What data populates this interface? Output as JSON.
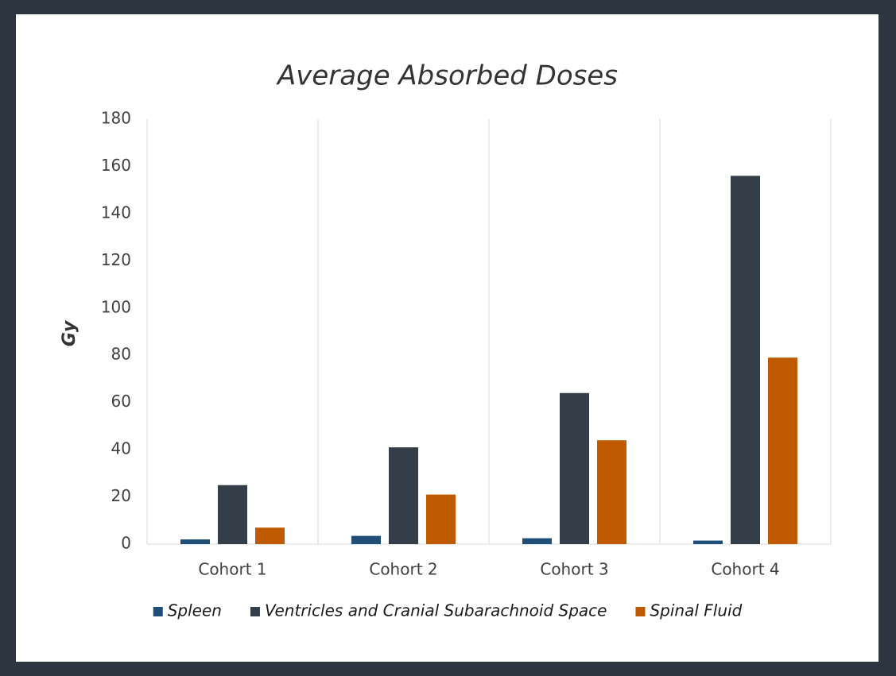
{
  "chart_data": {
    "type": "bar",
    "title": "Average Absorbed Doses",
    "y_label": "Gy",
    "categories": [
      "Cohort 1",
      "Cohort 2",
      "Cohort 3",
      "Cohort 4"
    ],
    "series": [
      {
        "name": "Spleen",
        "color": "#1f4e79",
        "values": [
          2,
          3.5,
          2.5,
          1.5
        ]
      },
      {
        "name": "Ventricles and Cranial Subarachnoid Space",
        "color": "#343e48",
        "values": [
          25,
          41,
          64,
          156
        ]
      },
      {
        "name": "Spinal Fluid",
        "color": "#c05a00",
        "values": [
          7,
          21,
          44,
          79
        ]
      }
    ],
    "ylim": [
      0,
      180
    ],
    "yticks": [
      0,
      20,
      40,
      60,
      80,
      100,
      120,
      140,
      160,
      180
    ],
    "legend": "bottom"
  }
}
